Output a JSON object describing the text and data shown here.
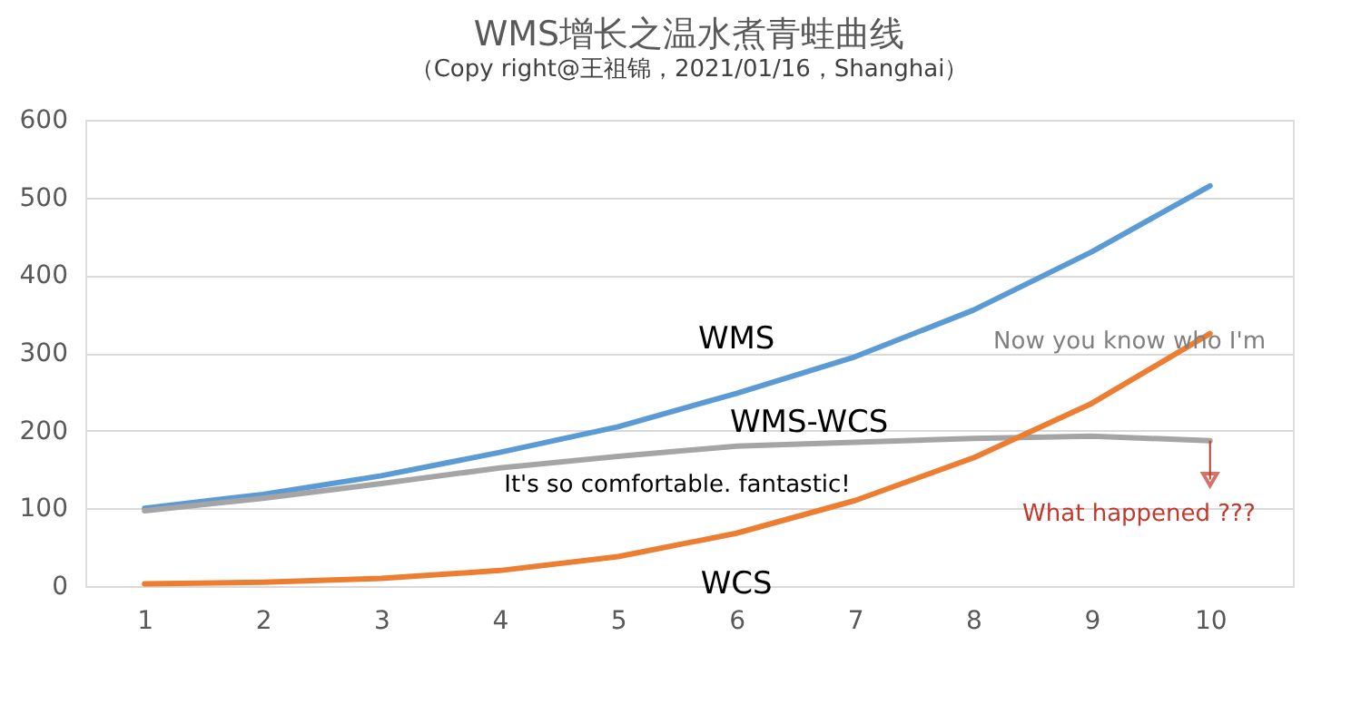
{
  "chart_data": {
    "type": "line",
    "title": "WMS增长之温水煮青蛙曲线",
    "subtitle": "（Copy right@王祖锦，2021/01/16，Shanghai）",
    "x": [
      1,
      2,
      3,
      4,
      5,
      6,
      7,
      8,
      9,
      10
    ],
    "series": [
      {
        "name": "WMS",
        "color": "#5b9bd5",
        "values": [
          100,
          118,
          142,
          172,
          205,
          248,
          295,
          355,
          430,
          515
        ]
      },
      {
        "name": "WMS-WCS",
        "color": "#a5a5a5",
        "values": [
          97,
          113,
          132,
          152,
          167,
          180,
          185,
          190,
          193,
          187
        ]
      },
      {
        "name": "WCS",
        "color": "#ed7d31",
        "values": [
          3,
          5,
          10,
          20,
          38,
          68,
          110,
          165,
          235,
          325
        ]
      }
    ],
    "xlim": [
      0.5,
      10.7
    ],
    "xticks": [
      1,
      2,
      3,
      4,
      5,
      6,
      7,
      8,
      9,
      10
    ],
    "ylim": [
      0,
      600
    ],
    "yticks": [
      0,
      100,
      200,
      300,
      400,
      500,
      600
    ],
    "grid": "y",
    "marker": "none",
    "line_style": "solid",
    "annotations": [
      "It's so comfortable. fantastic!",
      "Now you know who I'm",
      {
        "text": "What happened ???",
        "x": 10,
        "y": 187
      }
    ]
  }
}
